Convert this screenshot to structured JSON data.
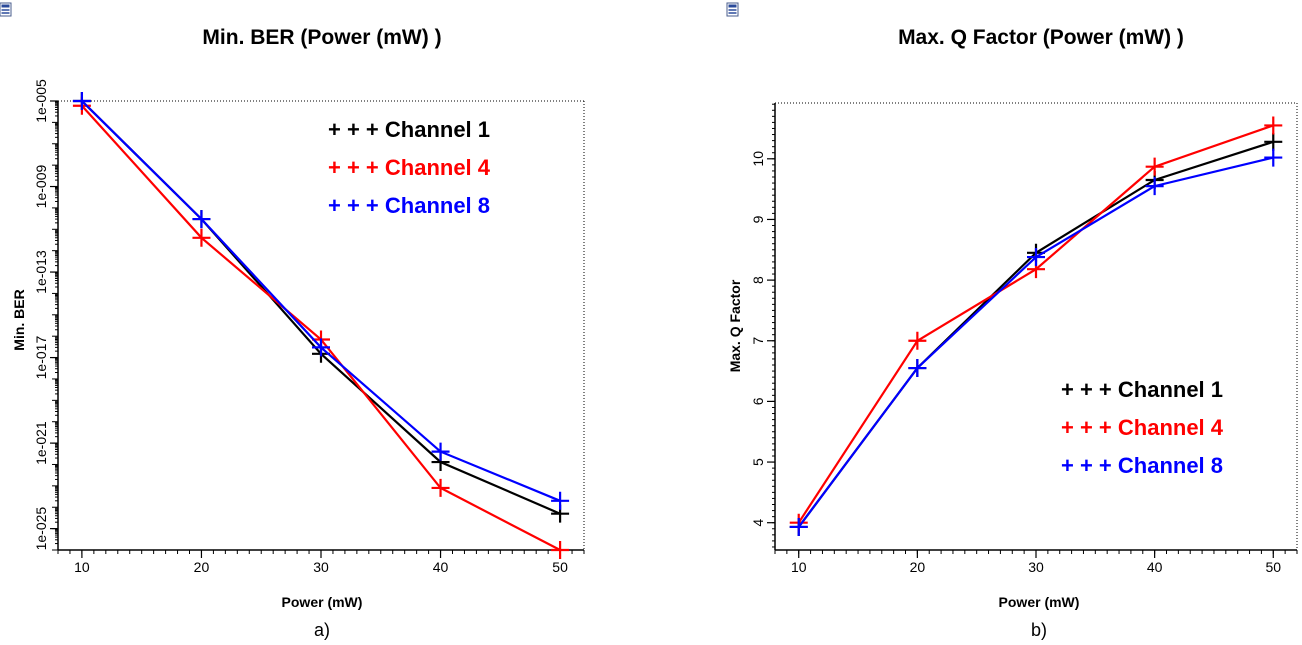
{
  "chart_data": [
    {
      "type": "line",
      "title": "Min. BER (Power (mW) )",
      "xlabel": "Power (mW)",
      "ylabel": "Min. BER",
      "caption": "a)",
      "yscale": "log",
      "x": [
        10,
        20,
        30,
        40,
        50
      ],
      "xticks": [
        "10",
        "20",
        "30",
        "40",
        "50"
      ],
      "xlim": [
        8,
        52
      ],
      "ylim": [
        1e-26,
        1e-05
      ],
      "yticks": [
        1e-05,
        1e-09,
        1e-13,
        1e-17,
        1e-21,
        1e-25
      ],
      "ytick_labels": [
        "1e-005",
        "1e-009",
        "1e-013",
        "1e-017",
        "1e-021",
        "1e-025"
      ],
      "grid": false,
      "legend_position": "top-right",
      "series": [
        {
          "name": "Channel 1",
          "color": "#000000",
          "values": [
            1e-05,
            3e-11,
            1.5e-17,
            1.3e-22,
            5e-25
          ]
        },
        {
          "name": "Channel 4",
          "color": "#ff0000",
          "values": [
            6e-06,
            4e-12,
            7e-17,
            8e-24,
            1e-26
          ]
        },
        {
          "name": "Channel 8",
          "color": "#0000ff",
          "values": [
            1e-05,
            3e-11,
            3e-17,
            4e-22,
            2e-24
          ]
        }
      ]
    },
    {
      "type": "line",
      "title": "Max. Q Factor (Power (mW) )",
      "xlabel": "Power (mW)",
      "ylabel": "Max. Q Factor",
      "caption": "b)",
      "yscale": "linear",
      "x": [
        10,
        20,
        30,
        40,
        50
      ],
      "xticks": [
        "10",
        "20",
        "30",
        "40",
        "50"
      ],
      "xlim": [
        8,
        52
      ],
      "ylim": [
        3.55,
        10.92
      ],
      "yticks": [
        4,
        5,
        6,
        7,
        8,
        9,
        10
      ],
      "ytick_labels": [
        "4",
        "5",
        "6",
        "7",
        "8",
        "9",
        "10"
      ],
      "grid": false,
      "legend_position": "bottom-right",
      "series": [
        {
          "name": "Channel 1",
          "color": "#000000",
          "values": [
            3.93,
            6.55,
            8.45,
            9.65,
            10.28
          ]
        },
        {
          "name": "Channel 4",
          "color": "#ff0000",
          "values": [
            4.0,
            7.0,
            8.18,
            9.87,
            10.55
          ]
        },
        {
          "name": "Channel 8",
          "color": "#0000ff",
          "values": [
            3.93,
            6.55,
            8.38,
            9.55,
            10.02
          ]
        }
      ]
    }
  ],
  "legend_marker": "+ + +",
  "icons": [
    "chart-window-icon",
    "chart-window-icon"
  ]
}
